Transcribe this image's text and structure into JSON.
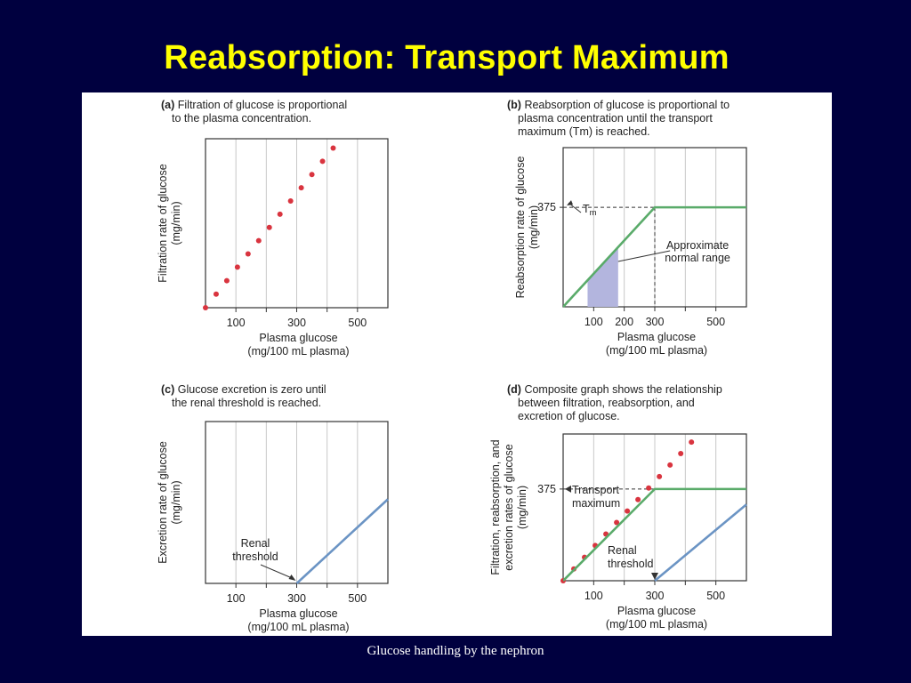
{
  "slide": {
    "title": "Reabsorption: Transport Maximum",
    "caption": "Glucose handling by the nephron",
    "background": "#00003f",
    "title_color": "#ffff00"
  },
  "colors": {
    "filtration": "#d9343f",
    "reabsorption": "#5aab6a",
    "excretion": "#6b94c4",
    "normal_range": "#b3b5de",
    "grid": "#c8c8c8"
  },
  "chart_data": [
    {
      "id": "a",
      "type": "scatter",
      "panel_label": "(a)",
      "title_lines": [
        "Filtration of glucose is proportional",
        "to the plasma concentration."
      ],
      "ylabel_lines": [
        "Filtration rate of glucose",
        "(mg/min)"
      ],
      "xlabel_lines": [
        "Plasma glucose",
        "(mg/100 mL plasma)"
      ],
      "xlim": [
        0,
        600
      ],
      "ylim": [
        0,
        600
      ],
      "x_ticks": [
        100,
        300,
        500
      ],
      "x_grid": [
        100,
        200,
        300,
        400,
        500
      ],
      "y_ticks": [],
      "series": [
        {
          "kind": "filtration",
          "x": [
            0,
            35,
            70,
            105,
            140,
            175,
            210,
            245,
            280,
            315,
            350,
            385,
            420,
            455
          ],
          "y": [
            0,
            48,
            96,
            144,
            191,
            238,
            285,
            332,
            379,
            426,
            473,
            520,
            567,
            614
          ]
        }
      ],
      "annotations": []
    },
    {
      "id": "b",
      "type": "line",
      "panel_label": "(b)",
      "title_lines": [
        "Reabsorption of glucose is proportional to",
        "plasma concentration until the transport",
        "maximum (Tm) is reached."
      ],
      "ylabel_lines": [
        "Reabsorption rate of glucose",
        "(mg/min)"
      ],
      "xlabel_lines": [
        "Plasma glucose",
        "(mg/100 mL plasma)"
      ],
      "xlim": [
        0,
        600
      ],
      "ylim": [
        0,
        600
      ],
      "x_ticks": [
        100,
        200,
        300,
        500
      ],
      "x_grid": [
        100,
        200,
        300,
        400,
        500
      ],
      "y_ticks": [
        375
      ],
      "series": [
        {
          "kind": "reabsorption",
          "x": [
            0,
            300,
            600
          ],
          "y": [
            0,
            375,
            375
          ]
        }
      ],
      "shaded_range": {
        "label_lines": [
          "Approximate",
          "normal range"
        ],
        "x": [
          80,
          180
        ]
      },
      "reference_point": {
        "x": 300,
        "y": 375,
        "label": "Tm"
      }
    },
    {
      "id": "c",
      "type": "line",
      "panel_label": "(c)",
      "title_lines": [
        "Glucose excretion is zero until",
        "the renal threshold is reached."
      ],
      "ylabel_lines": [
        "Excretion rate of glucose",
        "(mg/min)"
      ],
      "xlabel_lines": [
        "Plasma glucose",
        "(mg/100 mL plasma)"
      ],
      "xlim": [
        0,
        600
      ],
      "ylim": [
        0,
        600
      ],
      "x_ticks": [
        100,
        300,
        500
      ],
      "x_grid": [
        100,
        200,
        300,
        400,
        500
      ],
      "y_ticks": [],
      "series": [
        {
          "kind": "excretion",
          "x": [
            300,
            600
          ],
          "y": [
            0,
            312
          ]
        }
      ],
      "threshold_label_lines": [
        "Renal",
        "threshold"
      ]
    },
    {
      "id": "d",
      "type": "line",
      "panel_label": "(d)",
      "title_lines": [
        "Composite graph shows the relationship",
        "between filtration, reabsorption, and",
        "excretion of glucose."
      ],
      "ylabel_lines": [
        "Filtration, reabsorption, and",
        "excretion rates of glucose",
        "(mg/min)"
      ],
      "xlabel_lines": [
        "Plasma glucose",
        "(mg/100 mL plasma)"
      ],
      "xlim": [
        0,
        600
      ],
      "ylim": [
        0,
        600
      ],
      "x_ticks": [
        100,
        300,
        500
      ],
      "x_grid": [
        100,
        200,
        300,
        400,
        500
      ],
      "y_ticks": [
        375
      ],
      "series": [
        {
          "kind": "filtration",
          "x": [
            0,
            35,
            70,
            105,
            140,
            175,
            210,
            245,
            280,
            315,
            350,
            385,
            420,
            455
          ],
          "y": [
            0,
            48,
            96,
            144,
            191,
            238,
            285,
            332,
            379,
            426,
            473,
            520,
            567,
            614
          ]
        },
        {
          "kind": "reabsorption",
          "x": [
            0,
            300,
            600
          ],
          "y": [
            0,
            375,
            375
          ]
        },
        {
          "kind": "excretion",
          "x": [
            300,
            600
          ],
          "y": [
            0,
            312
          ]
        }
      ],
      "tm_label_lines": [
        "Transport",
        "maximum"
      ],
      "threshold_label_lines": [
        "Renal",
        "threshold"
      ]
    }
  ]
}
